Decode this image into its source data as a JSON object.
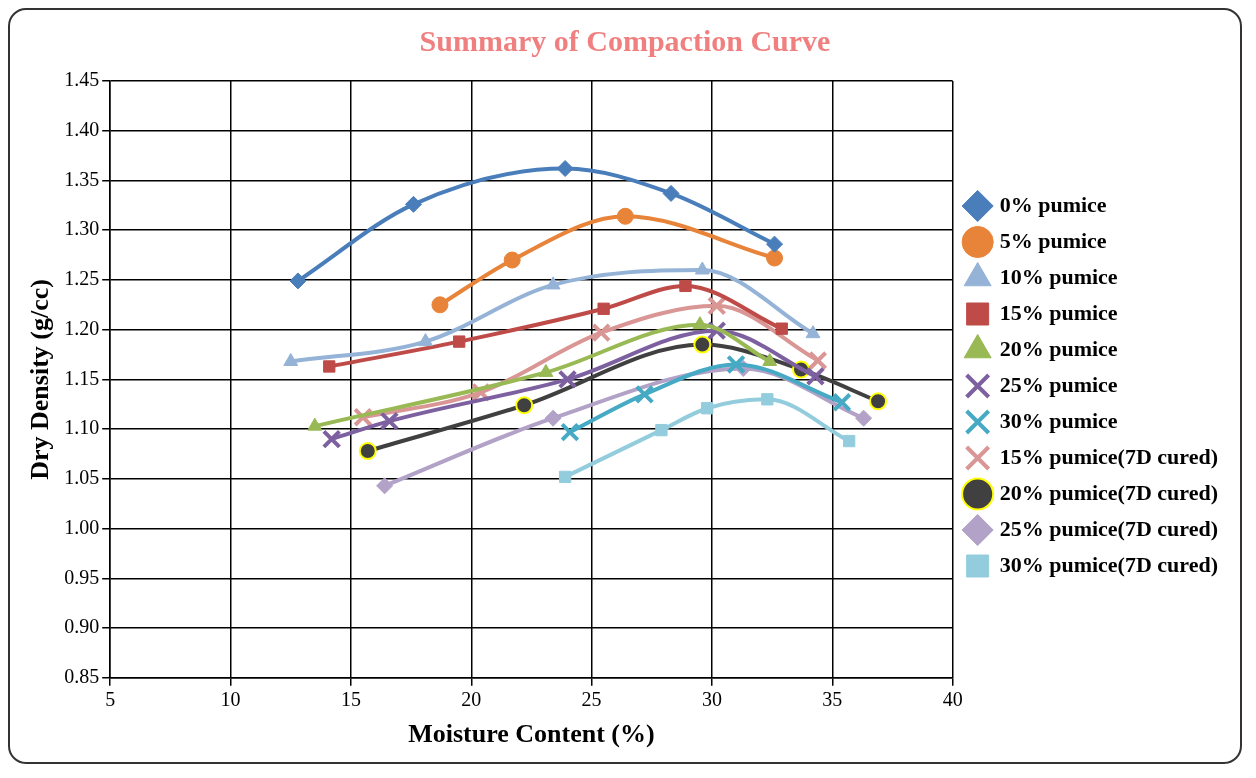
{
  "chart_data": {
    "type": "line",
    "title": "Summary of Compaction Curve",
    "xlabel": "Moisture Content (%)",
    "ylabel": "Dry Density (g/cc)",
    "xlim": [
      5,
      40
    ],
    "xticks": [
      5,
      10,
      15,
      20,
      25,
      30,
      35,
      40
    ],
    "ylim": [
      0.85,
      1.45
    ],
    "yticks": [
      {
        "value": 0.85,
        "label": "0.85"
      },
      {
        "value": 0.9,
        "label": "0.90"
      },
      {
        "value": 0.95,
        "label": "0.95"
      },
      {
        "value": 1.0,
        "label": "1.00"
      },
      {
        "value": 1.05,
        "label": "1.05"
      },
      {
        "value": 1.1,
        "label": "1.10"
      },
      {
        "value": 1.15,
        "label": "1.15"
      },
      {
        "value": 1.2,
        "label": "1.20"
      },
      {
        "value": 1.25,
        "label": "1.25"
      },
      {
        "value": 1.3,
        "label": "1.30"
      },
      {
        "value": 1.35,
        "label": "1.35"
      },
      {
        "value": 1.4,
        "label": "1.40"
      },
      {
        "value": 1.45,
        "label": "1.45"
      }
    ],
    "grid": true,
    "legend": "right",
    "series": [
      {
        "name": "0% pumice",
        "color": "#4a7ebb",
        "marker": "diamond",
        "x": [
          12.8,
          17.6,
          23.9,
          28.3,
          32.6
        ],
        "values": [
          1.249,
          1.326,
          1.362,
          1.337,
          1.286
        ]
      },
      {
        "name": "5% pumice",
        "color": "#e8843a",
        "marker": "circle",
        "x": [
          18.7,
          21.7,
          26.4,
          32.6
        ],
        "values": [
          1.225,
          1.27,
          1.314,
          1.272
        ]
      },
      {
        "name": "10% pumice",
        "color": "#95b3d7",
        "marker": "triangle",
        "x": [
          12.5,
          18.1,
          23.4,
          29.6,
          34.2
        ],
        "values": [
          1.168,
          1.188,
          1.245,
          1.26,
          1.196
        ]
      },
      {
        "name": "15% pumice",
        "color": "#be4b48",
        "marker": "square",
        "x": [
          14.1,
          19.5,
          25.5,
          28.9,
          32.9
        ],
        "values": [
          1.163,
          1.188,
          1.221,
          1.244,
          1.201
        ]
      },
      {
        "name": "20% pumice",
        "color": "#98b954",
        "marker": "triangle",
        "x": [
          13.5,
          23.1,
          29.5,
          32.4
        ],
        "values": [
          1.103,
          1.157,
          1.205,
          1.168
        ]
      },
      {
        "name": "25% pumice",
        "color": "#7d60a0",
        "marker": "cross",
        "x": [
          14.2,
          16.6,
          24.0,
          30.2,
          34.3
        ],
        "values": [
          1.09,
          1.108,
          1.15,
          1.199,
          1.153
        ]
      },
      {
        "name": "30% pumice",
        "color": "#46aac5",
        "marker": "cross",
        "x": [
          24.1,
          27.2,
          31.0,
          35.4
        ],
        "values": [
          1.097,
          1.135,
          1.165,
          1.127
        ]
      },
      {
        "name": "15% pumice(7D cured)",
        "color": "#d99694",
        "marker": "cross",
        "x": [
          15.5,
          20.4,
          25.4,
          30.2,
          34.4
        ],
        "values": [
          1.112,
          1.137,
          1.197,
          1.224,
          1.169
        ]
      },
      {
        "name": "20% pumice(7D cured)",
        "color": "#404040",
        "marker": "circle",
        "x": [
          15.7,
          22.2,
          29.6,
          33.7,
          36.9
        ],
        "values": [
          1.078,
          1.124,
          1.185,
          1.16,
          1.128
        ]
      },
      {
        "name": "25% pumice(7D cured)",
        "color": "#b3a2c7",
        "marker": "diamond",
        "x": [
          16.4,
          23.4,
          31.3,
          36.3
        ],
        "values": [
          1.043,
          1.111,
          1.161,
          1.111
        ]
      },
      {
        "name": "30% pumice(7D cured)",
        "color": "#93cddd",
        "marker": "square",
        "x": [
          23.9,
          27.9,
          29.8,
          32.3,
          35.7
        ],
        "values": [
          1.052,
          1.099,
          1.121,
          1.13,
          1.088
        ]
      }
    ]
  }
}
